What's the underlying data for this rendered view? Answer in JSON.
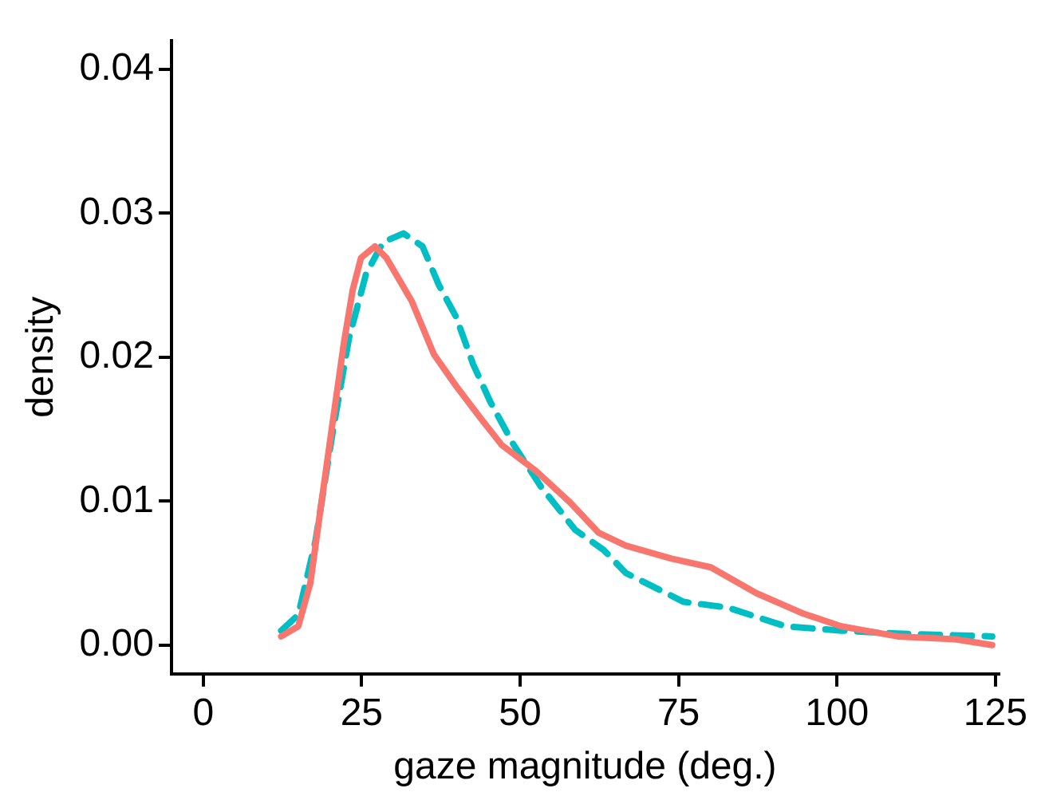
{
  "chart_data": {
    "type": "line",
    "xlabel": "gaze magnitude (deg.)",
    "ylabel": "density",
    "xlim": [
      -5,
      125.5
    ],
    "xticks": [
      0,
      25,
      50,
      75,
      100,
      125
    ],
    "ylim": [
      -0.002,
      0.042
    ],
    "yticks": [
      {
        "value": 0,
        "label": "0.00"
      },
      {
        "value": 0.01,
        "label": "0.01"
      },
      {
        "value": 0.02,
        "label": "0.02"
      },
      {
        "value": 0.03,
        "label": "0.03"
      },
      {
        "value": 0.04,
        "label": "0.04"
      }
    ],
    "grid": false,
    "legend": false,
    "marker": "none",
    "series": [
      {
        "color": "#f8766d",
        "line_style": "solid",
        "x": [
          12.3,
          15,
          16.9,
          18.5,
          20.4,
          22.2,
          23.6,
          24.9,
          27.1,
          28.9,
          32.9,
          36.4,
          39.9,
          43.7,
          47.1,
          52.5,
          57.9,
          62.4,
          66.7,
          73.9,
          80.1,
          87.3,
          94.6,
          100.7,
          109.6,
          118.7,
          124.5
        ],
        "values": [
          0.0006,
          0.0013,
          0.0043,
          0.0094,
          0.0154,
          0.021,
          0.0247,
          0.0269,
          0.0277,
          0.0269,
          0.0239,
          0.0202,
          0.018,
          0.0158,
          0.0139,
          0.0121,
          0.0099,
          0.0078,
          0.0069,
          0.006,
          0.0054,
          0.0036,
          0.0022,
          0.0013,
          0.0006,
          0.0004,
          0.0
        ]
      },
      {
        "color": "#00bfc4",
        "line_style": "dashed",
        "x": [
          12.3,
          15,
          17.7,
          20.4,
          23,
          25.7,
          28.4,
          31.6,
          34.6,
          37.2,
          39.9,
          42.6,
          45.3,
          49,
          53.3,
          58.7,
          63.2,
          66.7,
          75.8,
          82.8,
          91.9,
          100.7,
          109.6,
          124.5
        ],
        "values": [
          0.001,
          0.0021,
          0.0072,
          0.0147,
          0.0213,
          0.0258,
          0.028,
          0.0286,
          0.0277,
          0.025,
          0.0228,
          0.0195,
          0.0169,
          0.0139,
          0.011,
          0.008,
          0.0066,
          0.005,
          0.003,
          0.0026,
          0.0013,
          0.001,
          0.0008,
          0.0006
        ]
      }
    ]
  }
}
